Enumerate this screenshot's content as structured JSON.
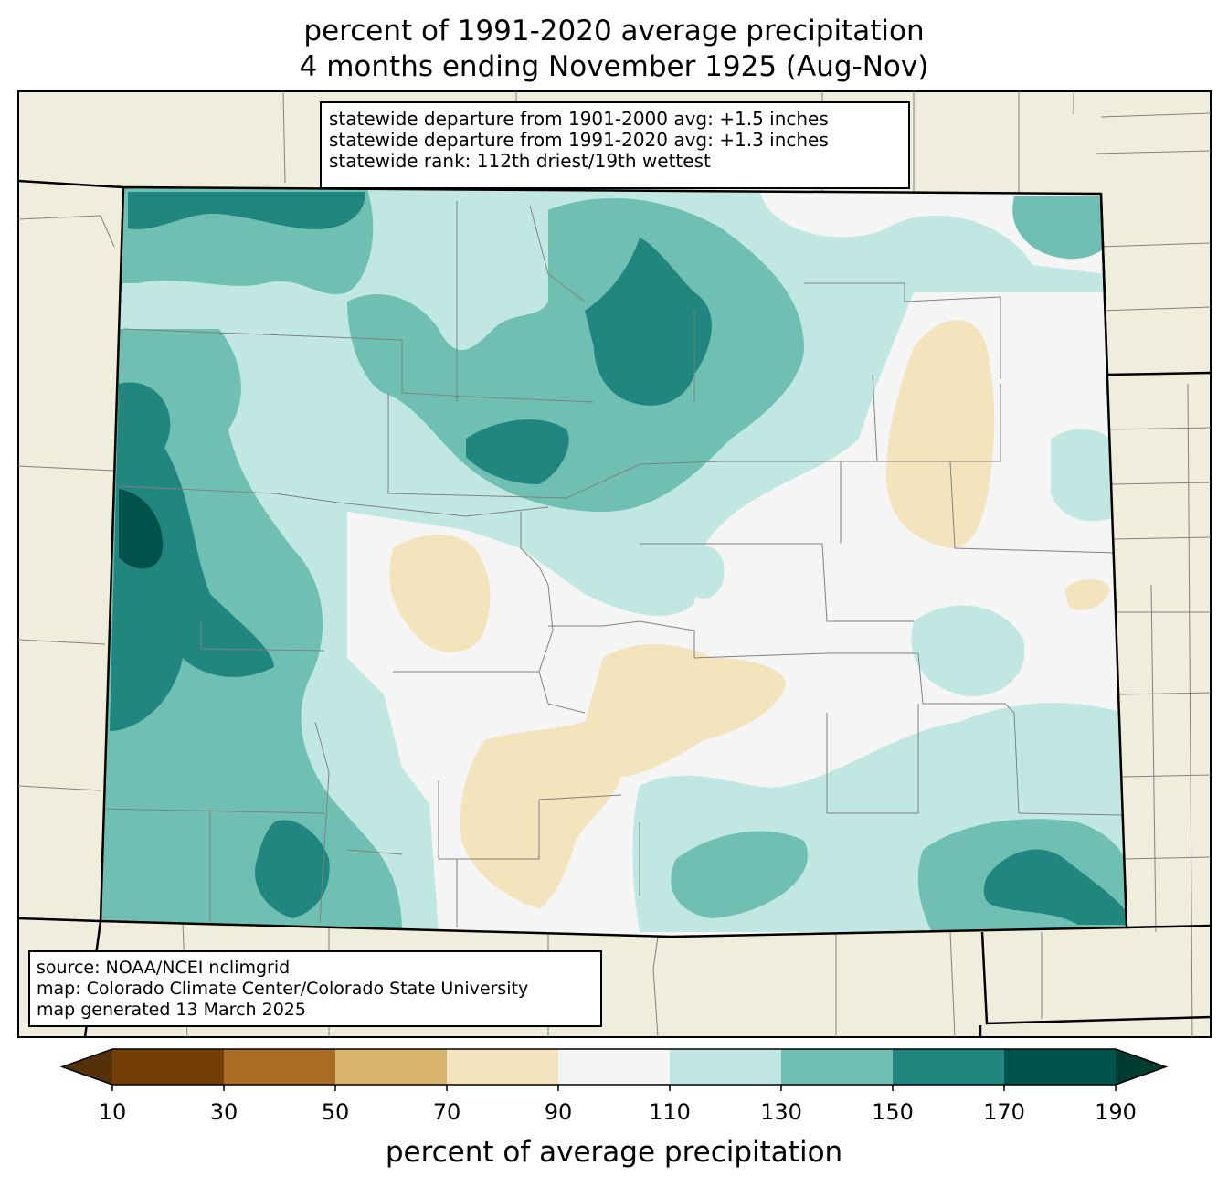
{
  "title": {
    "line1": "percent of 1991-2020 average precipitation",
    "line2": "4 months ending November 1925 (Aug-Nov)"
  },
  "stats_box": {
    "line1": "statewide departure from 1901-2000 avg: +1.5 inches",
    "line2": "statewide departure from 1991-2020 avg: +1.3 inches",
    "line3": "statewide rank: 112th driest/19th wettest"
  },
  "source_box": {
    "line1": "source: NOAA/NCEI nclimgrid",
    "line2": "map: Colorado Climate Center/Colorado State University",
    "line3": "map generated 13 March 2025"
  },
  "colorbar": {
    "label": "percent of average precipitation",
    "ticks": [
      "10",
      "30",
      "50",
      "70",
      "90",
      "110",
      "130",
      "150",
      "170",
      "190"
    ],
    "colors": [
      "#733f07",
      "#a96c22",
      "#d8b46e",
      "#f4e4bd",
      "#f4f5f4",
      "#c0e7e1",
      "#6fc0b3",
      "#218680",
      "#00534a"
    ],
    "under_color": "#553008",
    "over_color": "#003c30"
  },
  "map": {
    "land_color": "#efeedd",
    "state_border_color": "#000000",
    "county_border_color": "#808080"
  }
}
